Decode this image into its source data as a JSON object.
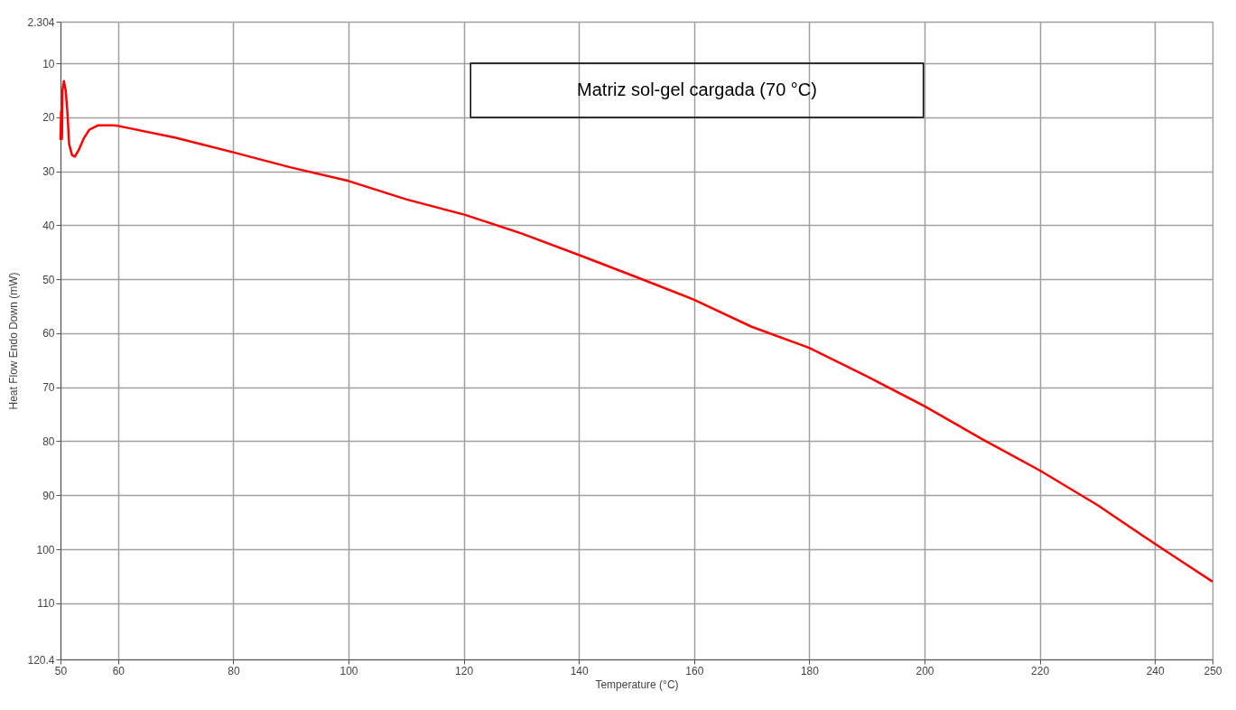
{
  "chart_data": {
    "type": "line",
    "xlabel": "Temperature (°C)",
    "ylabel": "Heat Flow Endo Down (mW)",
    "annotations": [
      "Matriz sol-gel cargada (70 °C)"
    ],
    "xlim": [
      50,
      250
    ],
    "xticks": [
      50,
      60,
      80,
      100,
      120,
      140,
      160,
      180,
      200,
      220,
      240,
      250
    ],
    "ylim": [
      120.4,
      2.304
    ],
    "yticks": [
      2.304,
      10,
      20,
      30,
      40,
      50,
      60,
      70,
      80,
      90,
      100,
      110,
      120.4
    ],
    "grid": true,
    "legend": false,
    "marker": "none",
    "line_style": "solid",
    "series": [
      {
        "color": "#ff0000",
        "x": [
          50.0,
          50.1,
          50.25,
          50.35,
          50.6,
          50.9,
          51.2,
          51.5,
          52.0,
          52.5,
          53.2,
          54.0,
          55.0,
          56.5,
          59,
          60,
          70,
          80,
          90,
          100,
          110,
          120,
          130,
          140,
          150,
          160,
          170,
          180,
          190,
          200,
          210,
          220,
          230,
          240,
          245,
          250
        ],
        "values": [
          24.2,
          19,
          24,
          15,
          13.3,
          15,
          19,
          25,
          27.0,
          27.3,
          26,
          24,
          22.3,
          21.5,
          21.5,
          21.6,
          23.8,
          26.5,
          29.3,
          31.8,
          35.2,
          38,
          41.5,
          45.5,
          49.6,
          53.8,
          58.8,
          62.7,
          68,
          73.5,
          79.6,
          85.4,
          91.8,
          99,
          102.5,
          106
        ]
      }
    ]
  }
}
